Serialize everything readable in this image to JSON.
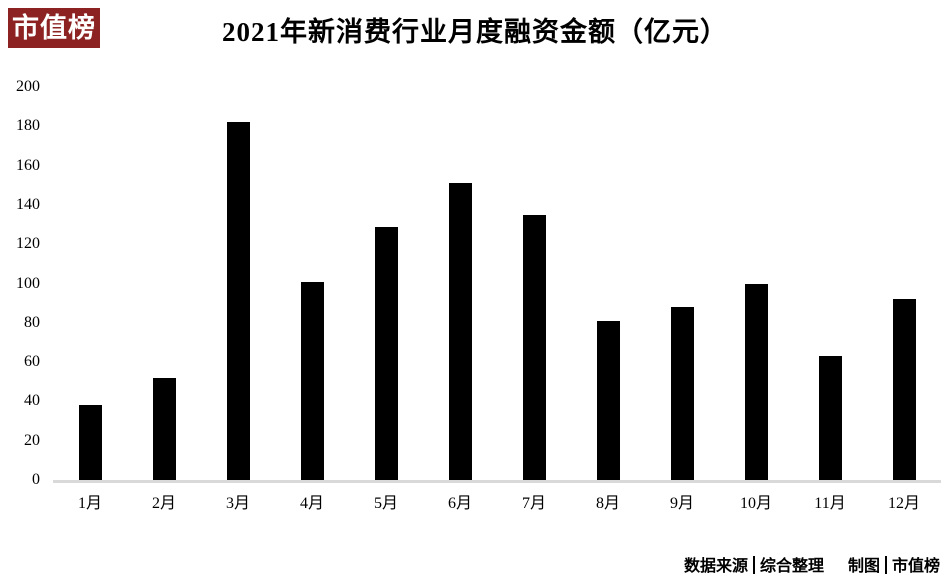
{
  "brand": {
    "logo_text": "市值榜",
    "logo_bg": "#8C2222",
    "logo_fg": "#FFFFFF"
  },
  "chart_data": {
    "type": "bar",
    "title": "2021年新消费行业月度融资金额（亿元）",
    "categories": [
      "1月",
      "2月",
      "3月",
      "4月",
      "5月",
      "6月",
      "7月",
      "8月",
      "9月",
      "10月",
      "11月",
      "12月"
    ],
    "values": [
      38,
      52,
      182,
      101,
      129,
      151,
      135,
      81,
      88,
      100,
      63,
      92
    ],
    "xlabel": "",
    "ylabel": "",
    "ylim": [
      0,
      200
    ],
    "yticks": [
      0,
      20,
      40,
      60,
      80,
      100,
      120,
      140,
      160,
      180,
      200
    ],
    "grid": false,
    "legend": false,
    "bar_color": "#000000",
    "axis_line_color": "#D9D9D9"
  },
  "footer": {
    "source_label": "数据来源",
    "source_value": "综合整理",
    "chart_by_label": "制图",
    "chart_by_value": "市值榜"
  }
}
